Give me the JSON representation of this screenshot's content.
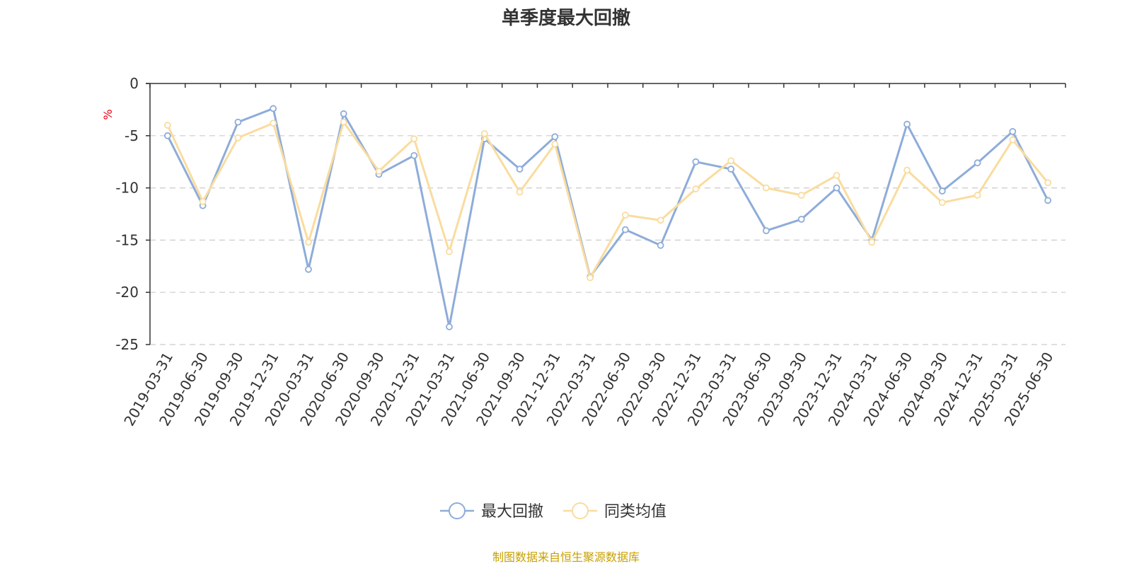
{
  "chart_data": {
    "type": "line",
    "title": "单季度最大回撤",
    "ylabel": "%",
    "xlabel": "",
    "ylim": [
      -25,
      0
    ],
    "yticks": [
      0,
      -5,
      -10,
      -15,
      -20,
      -25
    ],
    "grid": true,
    "legend_position": "bottom",
    "x": [
      "2019-03-31",
      "2019-06-30",
      "2019-09-30",
      "2019-12-31",
      "2020-03-31",
      "2020-06-30",
      "2020-09-30",
      "2020-12-31",
      "2021-03-31",
      "2021-06-30",
      "2021-09-30",
      "2021-12-31",
      "2022-03-31",
      "2022-06-30",
      "2022-09-30",
      "2022-12-31",
      "2023-03-31",
      "2023-06-30",
      "2023-09-30",
      "2023-12-31",
      "2024-03-31",
      "2024-06-30",
      "2024-09-30",
      "2024-12-31",
      "2025-03-31",
      "2025-06-30"
    ],
    "series": [
      {
        "name": "最大回撤",
        "color": "#8eacd9",
        "values": [
          -5.0,
          -11.7,
          -3.7,
          -2.4,
          -17.8,
          -2.9,
          -8.7,
          -6.9,
          -23.3,
          -5.3,
          -8.2,
          -5.1,
          -18.5,
          -14.0,
          -15.5,
          -7.5,
          -8.2,
          -14.1,
          -13.0,
          -10.0,
          -15.0,
          -3.9,
          -10.3,
          -7.6,
          -4.6,
          -11.2
        ]
      },
      {
        "name": "同类均值",
        "color": "#f9dc9f",
        "values": [
          -4.0,
          -11.3,
          -5.2,
          -3.8,
          -15.2,
          -3.7,
          -8.4,
          -5.3,
          -16.1,
          -4.8,
          -10.4,
          -5.8,
          -18.6,
          -12.6,
          -13.1,
          -10.1,
          -7.4,
          -10.0,
          -10.7,
          -8.8,
          -15.2,
          -8.3,
          -11.4,
          -10.7,
          -5.4,
          -9.5
        ]
      }
    ]
  },
  "footer": {
    "source": "制图数据来自恒生聚源数据库"
  }
}
